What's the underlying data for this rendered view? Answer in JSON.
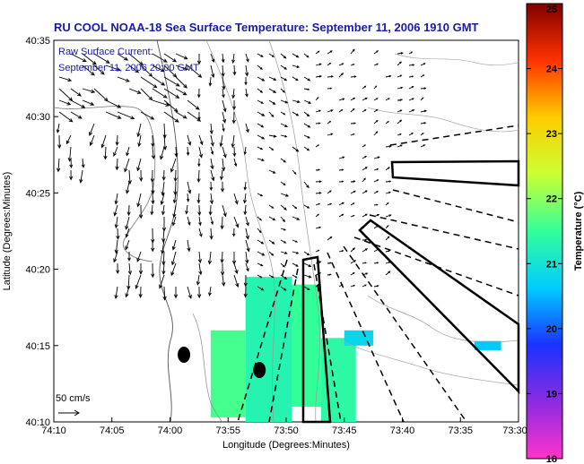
{
  "chart_data": {
    "type": "map-vector-field",
    "title": "RU COOL  NOAA-18  Sea Surface Temperature:  September 11, 2006 1910 GMT",
    "title_color": "#1a1aaa",
    "xlabel": "Longitude (Degrees:Minutes)",
    "ylabel": "Latitude (Degrees:Minutes)",
    "x_ticks": [
      "74:10",
      "74:05",
      "74:00",
      "73:55",
      "73:50",
      "73:45",
      "73:40",
      "73:35",
      "73:30"
    ],
    "y_ticks": [
      "40:10",
      "40:15",
      "40:20",
      "40:25",
      "40:30",
      "40:35"
    ],
    "xlim_minutes_west": [
      4450,
      4410
    ],
    "ylim_minutes_north": [
      2410,
      2435
    ],
    "annotation": {
      "line1": "Raw Surface Current:",
      "line2": "September 11, 2006 20:00 GMT",
      "color": "#1a1aaa"
    },
    "scale_arrow_label": "50 cm/s",
    "colorbar": {
      "label": "Temperature (°C)",
      "min": 18,
      "max": 25,
      "ticks": [
        "18",
        "19",
        "20",
        "21",
        "22",
        "23",
        "24",
        "25"
      ],
      "colors": [
        "#ff33cc",
        "#8a2be2",
        "#1a33ff",
        "#00ccff",
        "#33ff99",
        "#ccff33",
        "#ffcc00",
        "#ff3300",
        "#800000"
      ]
    },
    "sst_patches": [
      {
        "lon_w": [
          4433.5,
          4429.5
        ],
        "lat_n": [
          2410,
          2419.5
        ],
        "temp": 21.3
      },
      {
        "lon_w": [
          4436.5,
          4433.5
        ],
        "lat_n": [
          2410.3,
          2416.0
        ],
        "temp": 21.6
      },
      {
        "lon_w": [
          4429.5,
          4427.0
        ],
        "lat_n": [
          2411.0,
          2419.0
        ],
        "temp": 21.5
      },
      {
        "lon_w": [
          4427.0,
          4424.0
        ],
        "lat_n": [
          2410.0,
          2415.5
        ],
        "temp": 21.4
      },
      {
        "lon_w": [
          4425.0,
          4422.5
        ],
        "lat_n": [
          2415.0,
          2416.0
        ],
        "temp": 20.8
      },
      {
        "lon_w": [
          4413.8,
          4411.5
        ],
        "lat_n": [
          2414.7,
          2415.3
        ],
        "temp": 20.6
      }
    ],
    "buoys": [
      {
        "lon_w": 4438.8,
        "lat_n": 2414.4
      },
      {
        "lon_w": 4432.3,
        "lat_n": 2413.4
      }
    ]
  }
}
